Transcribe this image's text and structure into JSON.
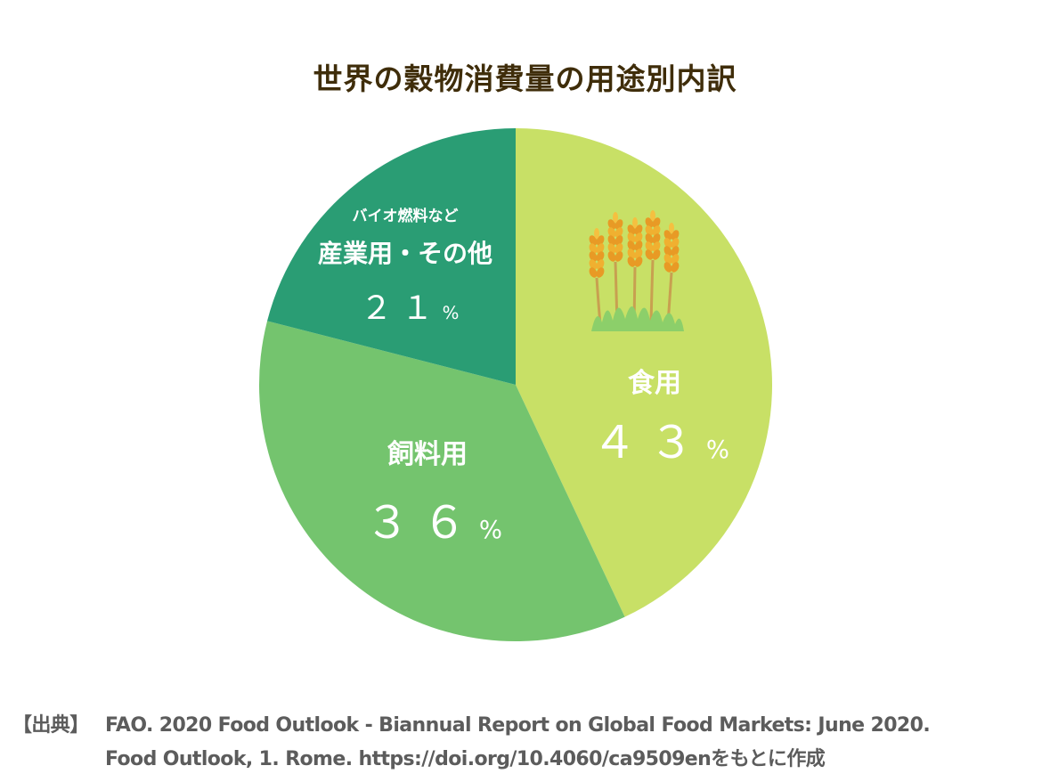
{
  "chart_data": {
    "type": "pie",
    "title": "世界の穀物消費量の用途別内訳",
    "categories": [
      "食用",
      "飼料用",
      "産業用・その他"
    ],
    "values": [
      43,
      36,
      21
    ],
    "unit": "%",
    "slices": [
      {
        "name": "食用",
        "value": 43,
        "value_text": "４３",
        "color": "#c8e066"
      },
      {
        "name": "飼料用",
        "value": 36,
        "value_text": "３６",
        "color": "#74c46e"
      },
      {
        "name": "産業用・その他",
        "value": 21,
        "value_text": "２１",
        "color": "#2a9d74",
        "note": "バイオ燃料など"
      }
    ],
    "start_angle_deg": 0,
    "direction": "clockwise",
    "legend": "none"
  },
  "percent_sign": "%",
  "source": {
    "key": "【出典】",
    "line1": "FAO. 2020 Food Outlook - Biannual Report on Global Food Markets: June 2020.",
    "line2": "Food Outlook, 1. Rome. https://doi.org/10.4060/ca9509enをもとに作成"
  },
  "icons": {
    "food": "wheat-icon"
  }
}
